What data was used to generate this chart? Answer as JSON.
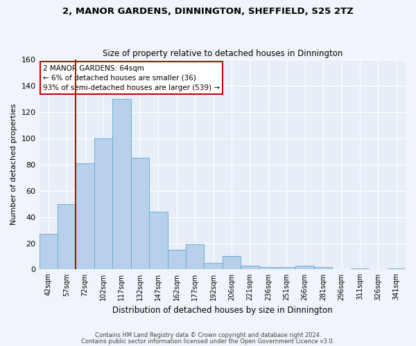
{
  "title1": "2, MANOR GARDENS, DINNINGTON, SHEFFIELD, S25 2TZ",
  "title2": "Size of property relative to detached houses in Dinnington",
  "xlabel": "Distribution of detached houses by size in Dinnington",
  "ylabel": "Number of detached properties",
  "bins": [
    "42sqm",
    "57sqm",
    "72sqm",
    "102sqm",
    "117sqm",
    "132sqm",
    "147sqm",
    "162sqm",
    "177sqm",
    "192sqm",
    "206sqm",
    "221sqm",
    "236sqm",
    "251sqm",
    "266sqm",
    "281sqm",
    "296sqm",
    "311sqm",
    "326sqm",
    "341sqm"
  ],
  "bar_heights": [
    27,
    50,
    81,
    100,
    130,
    85,
    44,
    15,
    19,
    5,
    10,
    3,
    2,
    2,
    3,
    2,
    0,
    1,
    0,
    1
  ],
  "bar_color": "#b8d0ea",
  "bar_edge_color": "#6aaed6",
  "vline_x": 1.5,
  "vline_color": "#cc0000",
  "annotation_text": "2 MANOR GARDENS: 64sqm\n← 6% of detached houses are smaller (36)\n93% of semi-detached houses are larger (539) →",
  "annotation_box_color": "#ffffff",
  "annotation_box_edge_color": "#cc0000",
  "ylim": [
    0,
    160
  ],
  "yticks": [
    0,
    20,
    40,
    60,
    80,
    100,
    120,
    140,
    160
  ],
  "footer1": "Contains HM Land Registry data © Crown copyright and database right 2024.",
  "footer2": "Contains public sector information licensed under the Open Government Licence v3.0.",
  "bg_color": "#f0f4fb",
  "plot_bg_color": "#e8eef8"
}
